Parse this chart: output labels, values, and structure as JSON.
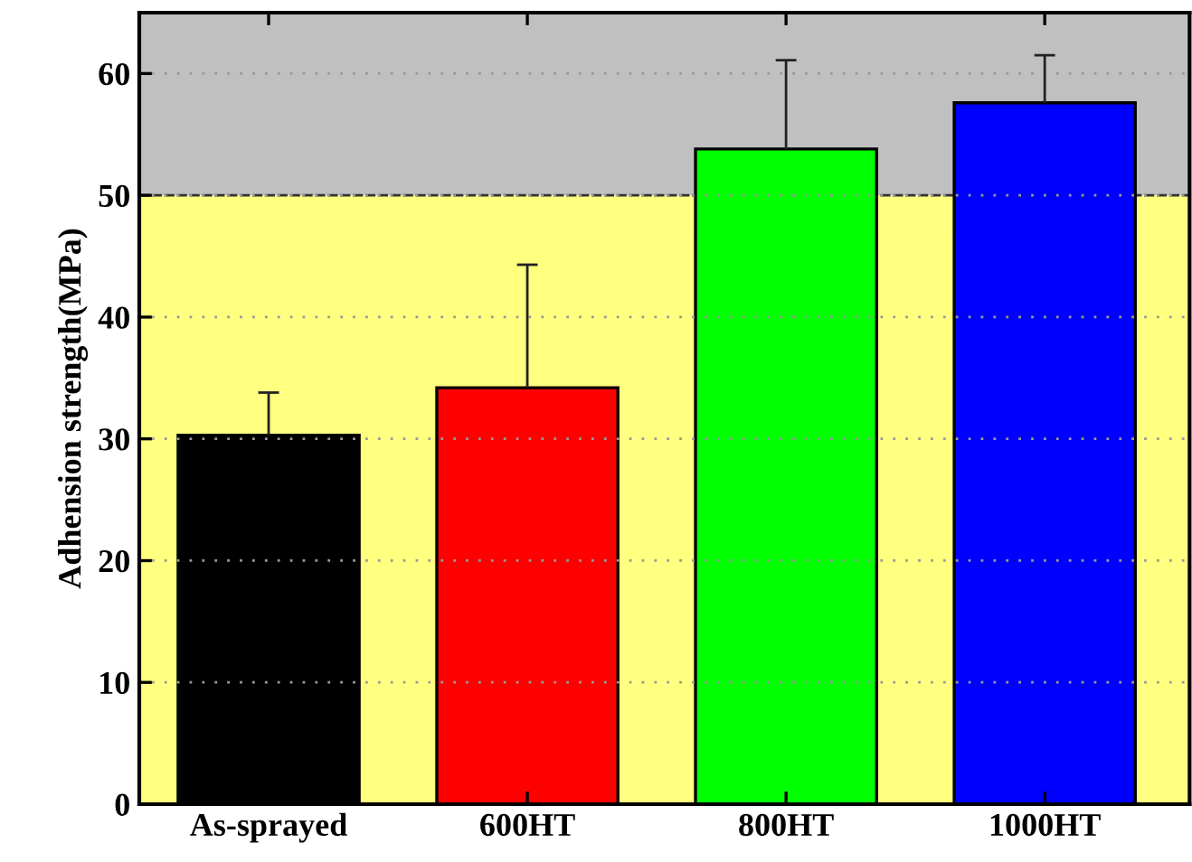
{
  "chart_data": {
    "type": "bar",
    "ylabel": "Adhension strength(MPa)",
    "categories": [
      "As-sprayed",
      "600HT",
      "800HT",
      "1000HT"
    ],
    "values": [
      30.3,
      34.2,
      53.8,
      57.6
    ],
    "colors": [
      "#000000",
      "#ff0000",
      "#00ff00",
      "#0000ff"
    ],
    "errors": [
      [
        30.3,
        33.8
      ],
      [
        34.2,
        44.3
      ],
      [
        53.8,
        61.1
      ],
      [
        57.6,
        61.5
      ]
    ],
    "ylim": [
      0,
      65
    ],
    "yticks": [
      0,
      10,
      20,
      30,
      40,
      50,
      60
    ],
    "grid": "y",
    "bands": [
      {
        "axis": "y",
        "from": 0,
        "to": 50,
        "color": "#ffff80"
      },
      {
        "axis": "y",
        "from": 50,
        "to": 65,
        "color": "#c0c0c0"
      }
    ],
    "ref_lines": [
      {
        "axis": "y",
        "value": 50,
        "color": "#333333",
        "line_style": "dashed"
      }
    ]
  }
}
